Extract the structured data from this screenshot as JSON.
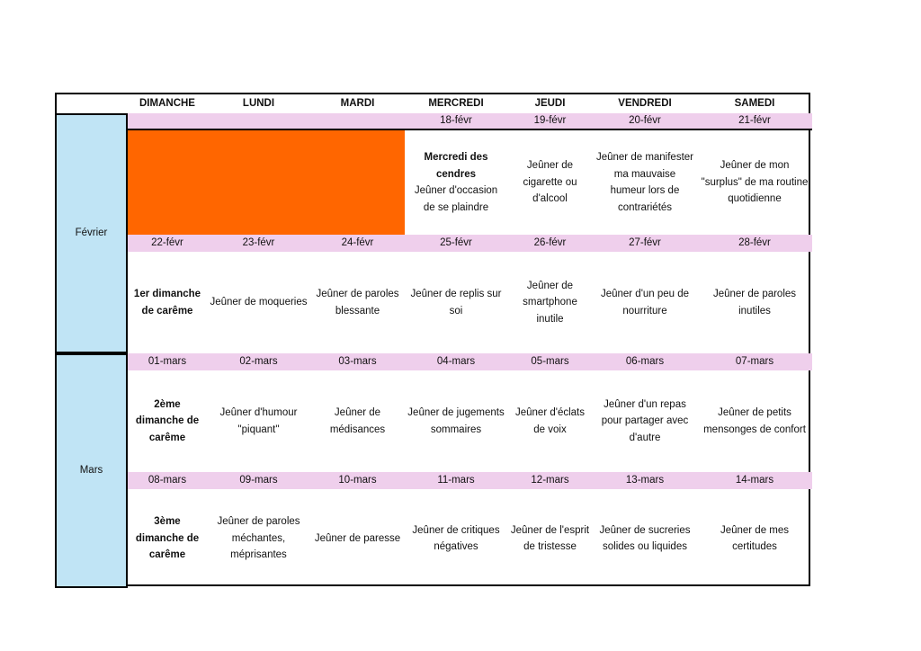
{
  "header": {
    "days": [
      "DIMANCHE",
      "LUNDI",
      "MARDI",
      "MERCREDI",
      "JEUDI",
      "VENDREDI",
      "SAMEDI"
    ]
  },
  "months": [
    "Février",
    "Mars"
  ],
  "colors": {
    "date_row": "#efcfec",
    "month_col": "#c0e4f5",
    "blocked": "#ff6600"
  },
  "weeks": [
    {
      "dates": [
        "",
        "",
        "",
        "18-févr",
        "19-févr",
        "20-févr",
        "21-févr"
      ],
      "cells": [
        {
          "blocked": true
        },
        {
          "blocked": true
        },
        {
          "blocked": true
        },
        {
          "bold": "Mercredi des cendres",
          "text": "Jeûner d'occasion de se plaindre"
        },
        {
          "text": "Jeûner de cigarette ou d'alcool"
        },
        {
          "text": "Jeûner de manifester ma mauvaise humeur lors de contrariétés"
        },
        {
          "text": "Jeûner de mon \"surplus\" de ma routine quotidienne"
        }
      ]
    },
    {
      "dates": [
        "22-févr",
        "23-févr",
        "24-févr",
        "25-févr",
        "26-févr",
        "27-févr",
        "28-févr"
      ],
      "cells": [
        {
          "bold": "1er dimanche de carême"
        },
        {
          "text": "Jeûner de moqueries"
        },
        {
          "text": "Jeûner de paroles blessante"
        },
        {
          "text": "Jeûner de replis sur soi"
        },
        {
          "text": "Jeûner de smartphone inutile"
        },
        {
          "text": "Jeûner d'un peu de nourriture"
        },
        {
          "text": "Jeûner de paroles inutiles"
        }
      ]
    },
    {
      "dates": [
        "01-mars",
        "02-mars",
        "03-mars",
        "04-mars",
        "05-mars",
        "06-mars",
        "07-mars"
      ],
      "cells": [
        {
          "bold": "2ème dimanche de carême"
        },
        {
          "text": "Jeûner d'humour \"piquant\""
        },
        {
          "text": "Jeûner de médisances"
        },
        {
          "text": "Jeûner de jugements sommaires"
        },
        {
          "text": "Jeûner d'éclats de voix"
        },
        {
          "text": "Jeûner d'un repas pour partager avec d'autre"
        },
        {
          "text": "Jeûner de petits mensonges de confort"
        }
      ]
    },
    {
      "dates": [
        "08-mars",
        "09-mars",
        "10-mars",
        "11-mars",
        "12-mars",
        "13-mars",
        "14-mars"
      ],
      "cells": [
        {
          "bold": "3ème dimanche de carême"
        },
        {
          "text": "Jeûner de paroles méchantes, méprisantes"
        },
        {
          "text": "Jeûner de paresse"
        },
        {
          "text": "Jeûner de critiques négatives"
        },
        {
          "text": "Jeûner de l'esprit de tristesse"
        },
        {
          "text": "Jeûner de sucreries solides ou liquides"
        },
        {
          "text": "Jeûner de mes certitudes"
        }
      ]
    }
  ]
}
